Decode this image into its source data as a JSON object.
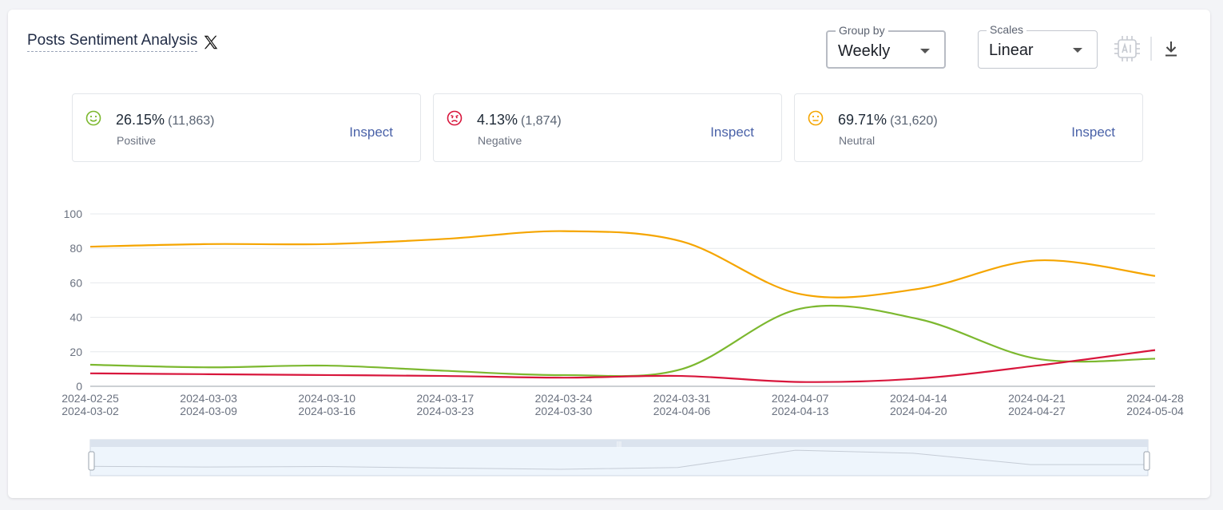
{
  "header": {
    "title": "Posts Sentiment Analysis",
    "platform_icon": "x-logo-icon"
  },
  "controls": {
    "group_by": {
      "legend": "Group by",
      "value": "Weekly"
    },
    "scales": {
      "legend": "Scales",
      "value": "Linear"
    },
    "ai_icon": "ai-chip-icon",
    "download_icon": "download-icon"
  },
  "stats": [
    {
      "key": "positive",
      "percent": "26.15%",
      "count": "(11,863)",
      "label": "Positive",
      "action": "Inspect",
      "color": "#7cb82f",
      "icon": "smile-face-icon"
    },
    {
      "key": "negative",
      "percent": "4.13%",
      "count": "(1,874)",
      "label": "Negative",
      "action": "Inspect",
      "color": "#d8163c",
      "icon": "angry-face-icon"
    },
    {
      "key": "neutral",
      "percent": "69.71%",
      "count": "(31,620)",
      "label": "Neutral",
      "action": "Inspect",
      "color": "#f5a500",
      "icon": "neutral-face-icon"
    }
  ],
  "chart_data": {
    "type": "line",
    "title": "",
    "xlabel": "",
    "ylabel": "",
    "ylim": [
      0,
      100
    ],
    "yticks": [
      0,
      20,
      40,
      60,
      80,
      100
    ],
    "grid": true,
    "legend": "none",
    "categories": [
      [
        "2024-02-25",
        "2024-03-02"
      ],
      [
        "2024-03-03",
        "2024-03-09"
      ],
      [
        "2024-03-10",
        "2024-03-16"
      ],
      [
        "2024-03-17",
        "2024-03-23"
      ],
      [
        "2024-03-24",
        "2024-03-30"
      ],
      [
        "2024-03-31",
        "2024-04-06"
      ],
      [
        "2024-04-07",
        "2024-04-13"
      ],
      [
        "2024-04-14",
        "2024-04-20"
      ],
      [
        "2024-04-21",
        "2024-04-27"
      ],
      [
        "2024-04-28",
        "2024-05-04"
      ]
    ],
    "series": [
      {
        "key": "neutral",
        "color": "#f5a500",
        "values": [
          81,
          82.5,
          82.5,
          85.5,
          90,
          84,
          53.5,
          56.5,
          73,
          64
        ]
      },
      {
        "key": "positive",
        "color": "#7cb82f",
        "values": [
          12.5,
          11,
          12,
          9,
          6.5,
          10,
          45,
          39,
          16,
          16
        ]
      },
      {
        "key": "negative",
        "color": "#d8163c",
        "values": [
          7.5,
          7,
          6.5,
          6,
          5,
          6,
          2.5,
          4.5,
          12,
          21
        ]
      }
    ],
    "navigator": {
      "series_key": "positive",
      "range": [
        0,
        9
      ]
    }
  }
}
